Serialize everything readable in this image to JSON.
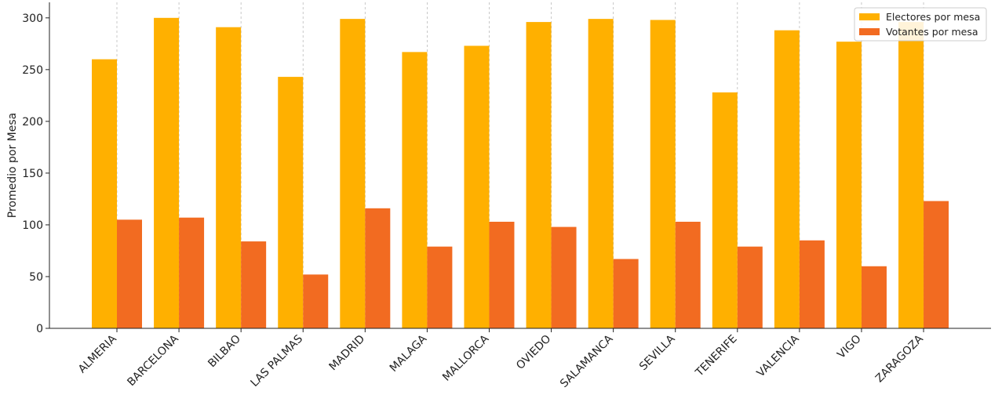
{
  "chart_data": {
    "type": "bar",
    "y_label": "Promedio por Mesa",
    "categories": [
      "ALMERIA",
      "BARCELONA",
      "BILBAO",
      "LAS PALMAS",
      "MADRID",
      "MALAGA",
      "MALLORCA",
      "OVIEDO",
      "SALAMANCA",
      "SEVILLA",
      "TENERIFE",
      "VALENCIA",
      "VIGO",
      "ZARAGOZA"
    ],
    "series": [
      {
        "name": "Electores por mesa",
        "color": "#ffb000",
        "values": [
          260,
          300,
          291,
          243,
          299,
          267,
          273,
          296,
          299,
          298,
          228,
          288,
          277,
          296
        ]
      },
      {
        "name": "Votantes por mesa",
        "color": "#f26b21",
        "values": [
          105,
          107,
          84,
          52,
          116,
          79,
          103,
          98,
          67,
          103,
          79,
          85,
          60,
          123
        ]
      }
    ],
    "ylim": [
      0,
      315
    ],
    "yticks": [
      0,
      50,
      100,
      150,
      200,
      250,
      300
    ],
    "grid": "x",
    "legend": "upper right"
  }
}
